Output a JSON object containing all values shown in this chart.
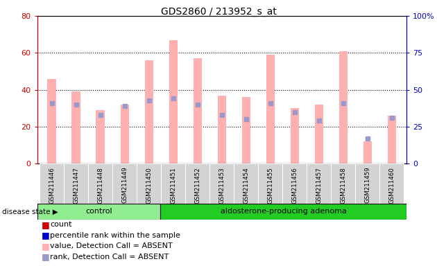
{
  "title": "GDS2860 / 213952_s_at",
  "samples": [
    "GSM211446",
    "GSM211447",
    "GSM211448",
    "GSM211449",
    "GSM211450",
    "GSM211451",
    "GSM211452",
    "GSM211453",
    "GSM211454",
    "GSM211455",
    "GSM211456",
    "GSM211457",
    "GSM211458",
    "GSM211459",
    "GSM211460"
  ],
  "pink_values": [
    46,
    39,
    29,
    32,
    56,
    67,
    57,
    37,
    36,
    59,
    30,
    32,
    61,
    12,
    26
  ],
  "blue_sq_values": [
    41,
    40,
    33,
    39,
    43,
    44,
    40,
    33,
    30,
    41,
    35,
    29,
    41,
    17,
    31
  ],
  "control_count": 5,
  "adenoma_count": 10,
  "control_label": "control",
  "adenoma_label": "aldosterone-producing adenoma",
  "disease_state_label": "disease state",
  "ylim_left": [
    0,
    80
  ],
  "ylim_right": [
    0,
    100
  ],
  "yticks_left": [
    0,
    20,
    40,
    60,
    80
  ],
  "yticks_right": [
    0,
    25,
    50,
    75,
    100
  ],
  "yticklabels_right": [
    "0",
    "25",
    "50",
    "75",
    "100%"
  ],
  "grid_values": [
    20,
    40,
    60
  ],
  "left_color": "#cc0000",
  "right_color": "#0000cc",
  "pink_bar_color": "#ffb0b0",
  "blue_sq_color": "#9999cc",
  "control_bg": "#90ee90",
  "adenoma_bg": "#22cc22",
  "xticklabel_bg": "#d3d3d3",
  "bar_width": 0.35,
  "legend_items": [
    {
      "color": "#cc0000",
      "label": "count"
    },
    {
      "color": "#0000cc",
      "label": "percentile rank within the sample"
    },
    {
      "color": "#ffb0b0",
      "label": "value, Detection Call = ABSENT"
    },
    {
      "color": "#9999cc",
      "label": "rank, Detection Call = ABSENT"
    }
  ]
}
